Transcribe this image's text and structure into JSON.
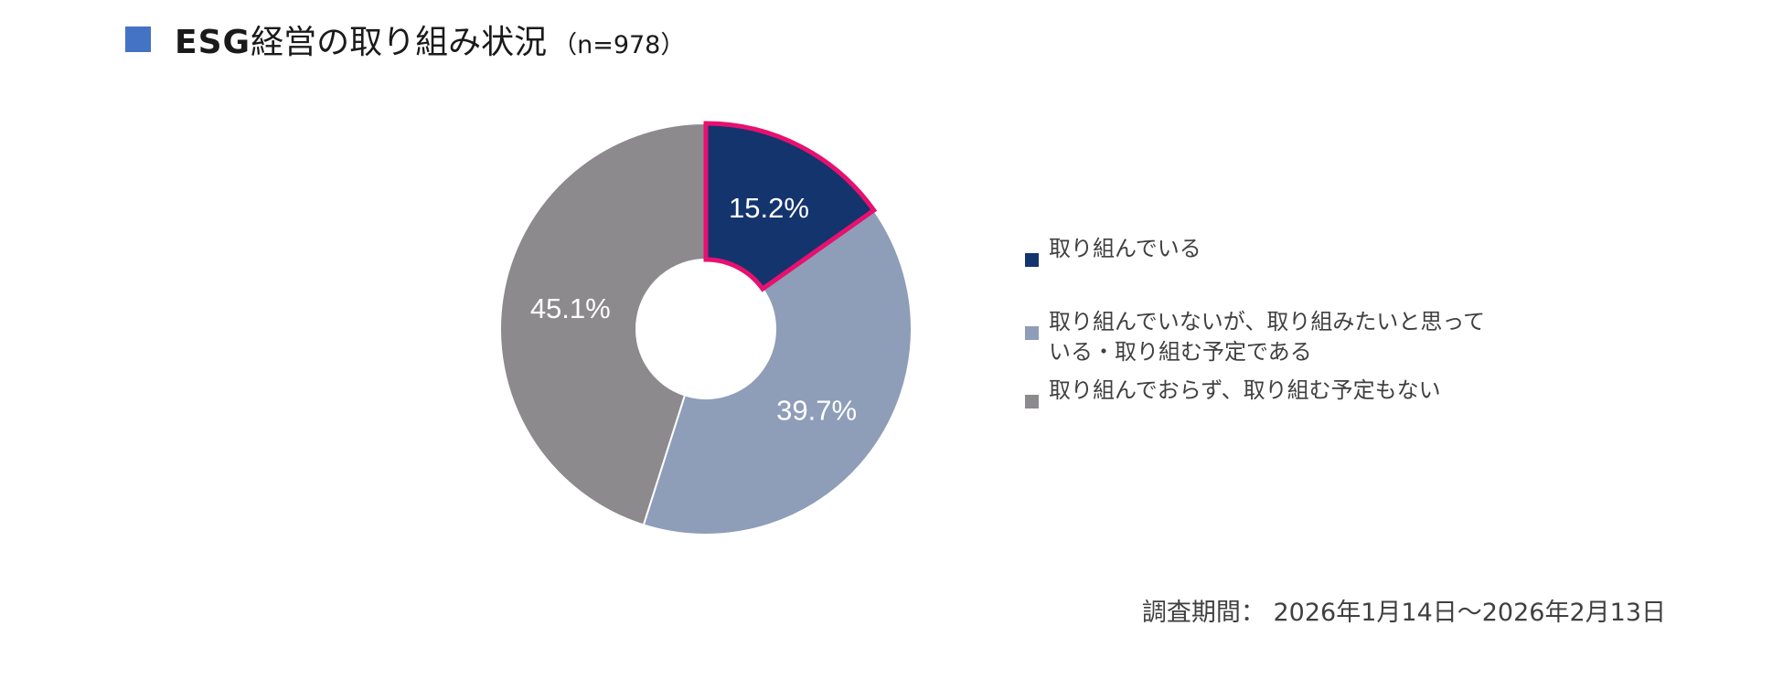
{
  "header": {
    "title_prefix": "ESG",
    "title_main": "経営の取り組み状況",
    "sample_size": "（n=978）"
  },
  "chart_data": {
    "type": "pie",
    "variant": "donut",
    "start_angle_deg": 0,
    "direction": "clockwise",
    "categories": [
      "取り組んでいる",
      "取り組んでいないが、取り組みたいと思っている・取り組む予定である",
      "取り組んでおらず、取り組む予定もない"
    ],
    "values": [
      15.2,
      39.7,
      45.1
    ],
    "labels": [
      "15.2%",
      "39.7%",
      "45.1%"
    ],
    "colors": [
      "#14346e",
      "#8e9db8",
      "#8c8a8d"
    ],
    "highlight_index": 0,
    "highlight_color": "#e8106f",
    "legend_position": "right"
  },
  "legend": {
    "items": [
      {
        "line1": "取り組んでいる",
        "line2": ""
      },
      {
        "line1": "取り組んでいないが、取り組みたいと思って",
        "line2": "いる・取り組む予定である"
      },
      {
        "line1": "取り組んでおらず、取り組む予定もない",
        "line2": ""
      }
    ]
  },
  "footer": {
    "survey_period": "調査期間： 2026年1月14日～2026年2月13日"
  }
}
